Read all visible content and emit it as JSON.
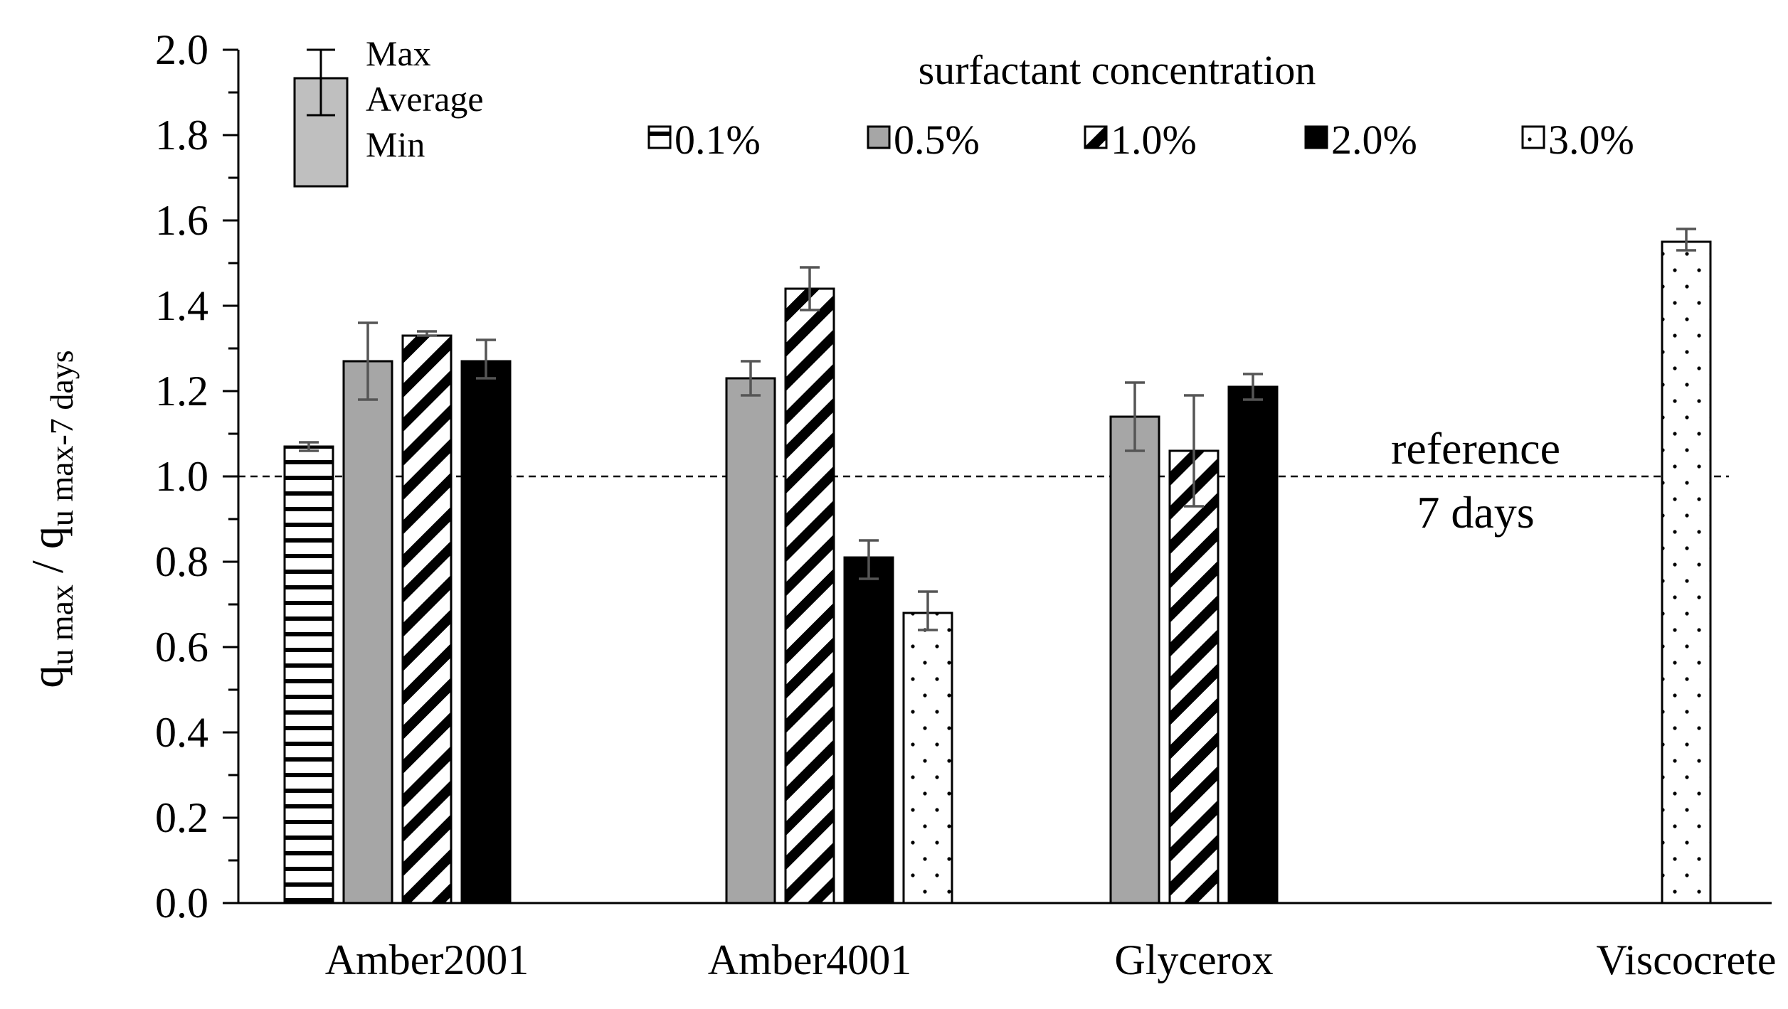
{
  "chart_data": {
    "type": "bar",
    "ylabel": {
      "parts": [
        {
          "text": "q",
          "sub": false
        },
        {
          "text": "u max",
          "sub": true
        },
        {
          "text": " / q",
          "sub": false
        },
        {
          "text": "u max-7 days",
          "sub": true
        }
      ]
    },
    "ylim": [
      0,
      2.0
    ],
    "yticks": [
      "0.0",
      "0.2",
      "0.4",
      "0.6",
      "0.8",
      "1.0",
      "1.2",
      "1.4",
      "1.6",
      "1.8",
      "2.0"
    ],
    "categories": [
      "Amber2001",
      "Amber4001",
      "Glycerox",
      "Viscocrete"
    ],
    "legend_title": "surfactant concentration",
    "series": [
      {
        "name": "0.1%",
        "pattern": "hlines",
        "values": [
          1.07,
          null,
          null,
          null
        ],
        "err_min": [
          1.06,
          null,
          null,
          null
        ],
        "err_max": [
          1.08,
          null,
          null,
          null
        ]
      },
      {
        "name": "0.5%",
        "pattern": "gray",
        "values": [
          1.27,
          1.23,
          1.14,
          null
        ],
        "err_min": [
          1.18,
          1.19,
          1.06,
          null
        ],
        "err_max": [
          1.36,
          1.27,
          1.22,
          null
        ]
      },
      {
        "name": "1.0%",
        "pattern": "diagonal",
        "values": [
          1.33,
          1.44,
          1.06,
          null
        ],
        "err_min": [
          1.33,
          1.39,
          0.93,
          null
        ],
        "err_max": [
          1.34,
          1.49,
          1.19,
          null
        ]
      },
      {
        "name": "2.0%",
        "pattern": "black",
        "values": [
          1.27,
          0.81,
          1.21,
          null
        ],
        "err_min": [
          1.23,
          0.76,
          1.18,
          null
        ],
        "err_max": [
          1.32,
          0.85,
          1.24,
          null
        ]
      },
      {
        "name": "3.0%",
        "pattern": "dots",
        "values": [
          null,
          0.68,
          null,
          1.55
        ],
        "err_min": [
          null,
          0.64,
          null,
          1.53
        ],
        "err_max": [
          null,
          0.73,
          null,
          1.58
        ]
      }
    ],
    "reference_line": {
      "value": 1.0,
      "label_line1": "reference",
      "label_line2": "7 days"
    },
    "errorbar_key": {
      "max": "Max",
      "average": "Average",
      "min": "Min"
    },
    "colors": {
      "gray": "#a6a6a6",
      "black": "#000000",
      "errorbar": "#555555",
      "key_fill": "#bfbfbf"
    }
  }
}
